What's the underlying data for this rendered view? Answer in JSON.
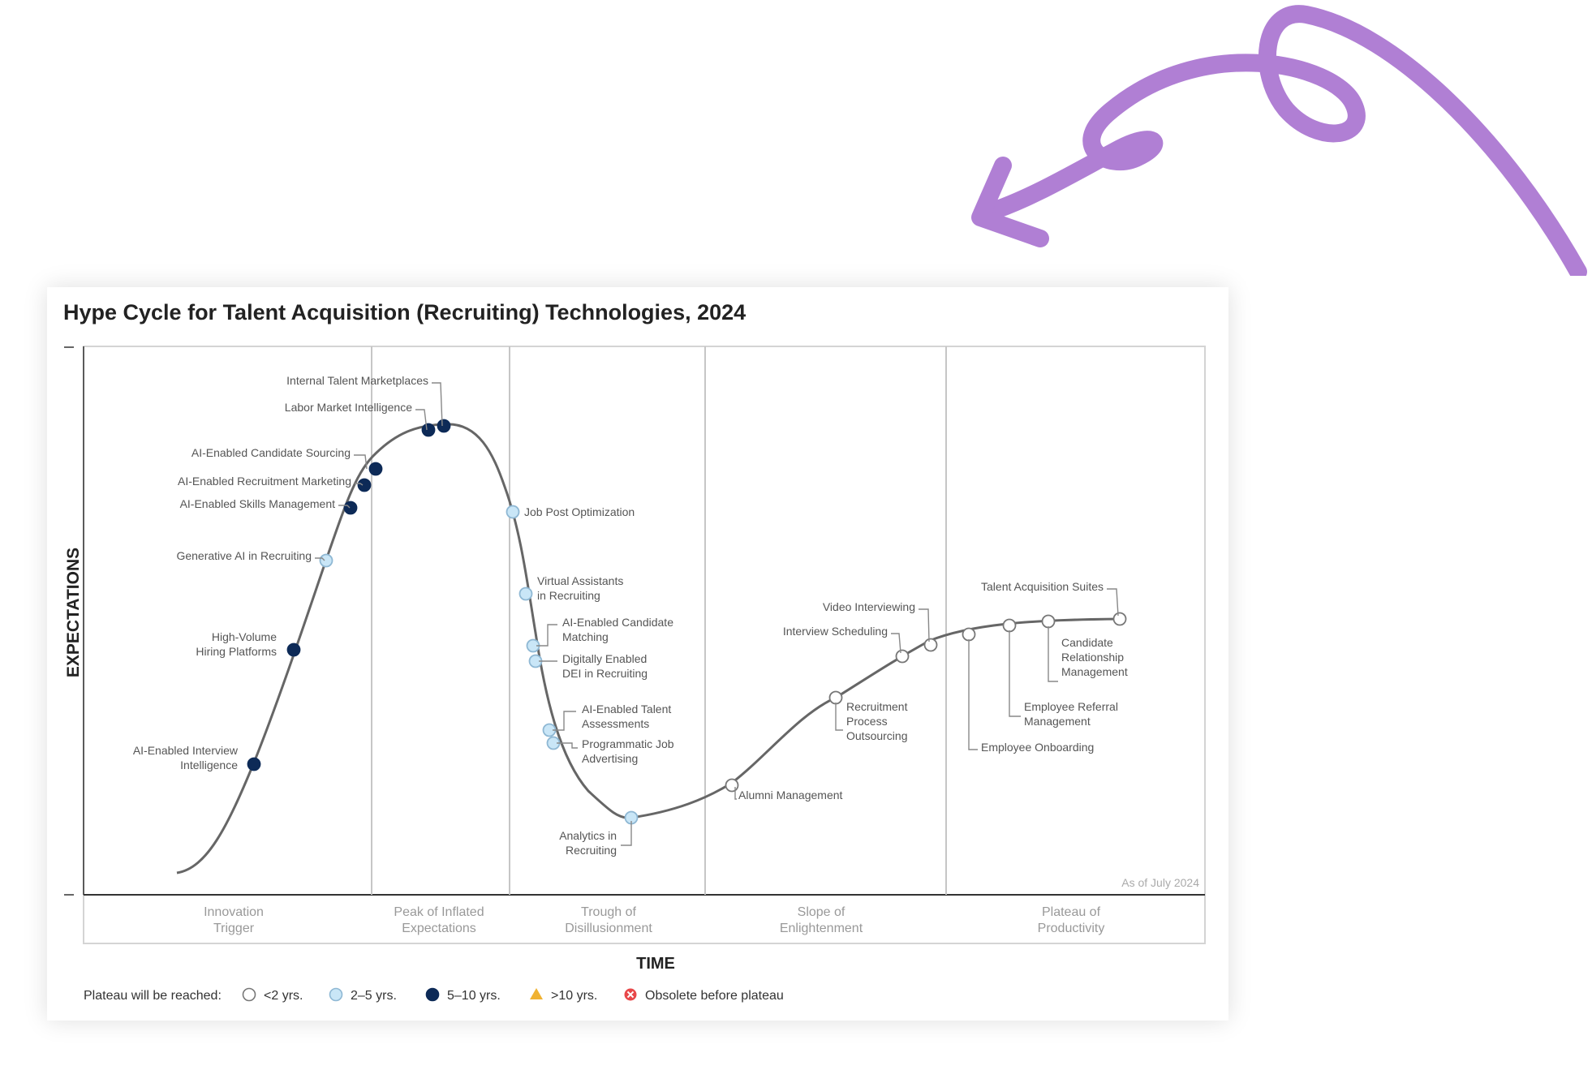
{
  "title": "Hype Cycle for Talent Acquisition (Recruiting) Technologies, 2024",
  "y_axis_label": "EXPECTATIONS",
  "x_axis_label": "TIME",
  "as_of": "As of July 2024",
  "colors": {
    "arrow": "#b07fd4",
    "lt2": "#ffffff",
    "y2to5": "#c9e6f7",
    "y5to10": "#0d2a57",
    "gt10": "#f0b232",
    "obsolete": "#e8484a"
  },
  "phases": [
    {
      "lines": [
        "Innovation",
        "Trigger"
      ]
    },
    {
      "lines": [
        "Peak of Inflated",
        "Expectations"
      ]
    },
    {
      "lines": [
        "Trough of",
        "Disillusionment"
      ]
    },
    {
      "lines": [
        "Slope of",
        "Enlightenment"
      ]
    },
    {
      "lines": [
        "Plateau of",
        "Productivity"
      ]
    }
  ],
  "legend": {
    "label": "Plateau will be reached:",
    "items": [
      {
        "text": "<2 yrs.",
        "kind": "lt2"
      },
      {
        "text": "2–5 yrs.",
        "kind": "y2to5"
      },
      {
        "text": "5–10 yrs.",
        "kind": "y5to10"
      },
      {
        "text": ">10 yrs.",
        "kind": "gt10"
      },
      {
        "text": "Obsolete before plateau",
        "kind": "obsolete"
      }
    ]
  },
  "technologies": [
    {
      "name": "AI-Enabled Interview Intelligence",
      "lines": [
        "AI-Enabled Interview",
        "Intelligence"
      ],
      "kind": "y5to10",
      "phase": "Innovation Trigger"
    },
    {
      "name": "High-Volume Hiring Platforms",
      "lines": [
        "High-Volume",
        "Hiring Platforms"
      ],
      "kind": "y5to10",
      "phase": "Innovation Trigger"
    },
    {
      "name": "Generative AI in Recruiting",
      "lines": [
        "Generative AI in Recruiting"
      ],
      "kind": "y2to5",
      "phase": "Innovation Trigger"
    },
    {
      "name": "AI-Enabled Skills Management",
      "lines": [
        "AI-Enabled Skills Management"
      ],
      "kind": "y5to10",
      "phase": "Innovation Trigger"
    },
    {
      "name": "AI-Enabled Recruitment Marketing",
      "lines": [
        "AI-Enabled Recruitment Marketing"
      ],
      "kind": "y5to10",
      "phase": "Innovation Trigger"
    },
    {
      "name": "AI-Enabled Candidate Sourcing",
      "lines": [
        "AI-Enabled Candidate Sourcing"
      ],
      "kind": "y5to10",
      "phase": "Peak of Inflated Expectations"
    },
    {
      "name": "Labor Market Intelligence",
      "lines": [
        "Labor Market Intelligence"
      ],
      "kind": "y5to10",
      "phase": "Peak of Inflated Expectations"
    },
    {
      "name": "Internal Talent Marketplaces",
      "lines": [
        "Internal Talent Marketplaces"
      ],
      "kind": "y5to10",
      "phase": "Peak of Inflated Expectations"
    },
    {
      "name": "Job Post Optimization",
      "lines": [
        "Job Post Optimization"
      ],
      "kind": "y2to5",
      "phase": "Trough of Disillusionment"
    },
    {
      "name": "Virtual Assistants in Recruiting",
      "lines": [
        "Virtual Assistants",
        "in Recruiting"
      ],
      "kind": "y2to5",
      "phase": "Trough of Disillusionment"
    },
    {
      "name": "AI-Enabled Candidate Matching",
      "lines": [
        "AI-Enabled Candidate",
        "Matching"
      ],
      "kind": "y2to5",
      "phase": "Trough of Disillusionment"
    },
    {
      "name": "Digitally Enabled DEI in Recruiting",
      "lines": [
        "Digitally Enabled",
        "DEI in Recruiting"
      ],
      "kind": "y2to5",
      "phase": "Trough of Disillusionment"
    },
    {
      "name": "AI-Enabled Talent Assessments",
      "lines": [
        "AI-Enabled Talent",
        "Assessments"
      ],
      "kind": "y2to5",
      "phase": "Trough of Disillusionment"
    },
    {
      "name": "Programmatic Job Advertising",
      "lines": [
        "Programmatic Job",
        "Advertising"
      ],
      "kind": "y2to5",
      "phase": "Trough of Disillusionment"
    },
    {
      "name": "Analytics in Recruiting",
      "lines": [
        "Analytics in",
        "Recruiting"
      ],
      "kind": "y2to5",
      "phase": "Trough of Disillusionment"
    },
    {
      "name": "Alumni Management",
      "lines": [
        "Alumni Management"
      ],
      "kind": "lt2",
      "phase": "Slope of Enlightenment"
    },
    {
      "name": "Recruitment Process Outsourcing",
      "lines": [
        "Recruitment",
        "Process",
        "Outsourcing"
      ],
      "kind": "lt2",
      "phase": "Slope of Enlightenment"
    },
    {
      "name": "Interview Scheduling",
      "lines": [
        "Interview Scheduling"
      ],
      "kind": "lt2",
      "phase": "Slope of Enlightenment"
    },
    {
      "name": "Video Interviewing",
      "lines": [
        "Video Interviewing"
      ],
      "kind": "lt2",
      "phase": "Slope of Enlightenment"
    },
    {
      "name": "Employee Onboarding",
      "lines": [
        "Employee Onboarding"
      ],
      "kind": "lt2",
      "phase": "Plateau of Productivity"
    },
    {
      "name": "Employee Referral Management",
      "lines": [
        "Employee Referral",
        "Management"
      ],
      "kind": "lt2",
      "phase": "Plateau of Productivity"
    },
    {
      "name": "Candidate Relationship Management",
      "lines": [
        "Candidate",
        "Relationship",
        "Management"
      ],
      "kind": "lt2",
      "phase": "Plateau of Productivity"
    },
    {
      "name": "Talent Acquisition Suites",
      "lines": [
        "Talent Acquisition Suites"
      ],
      "kind": "lt2",
      "phase": "Plateau of Productivity"
    }
  ]
}
